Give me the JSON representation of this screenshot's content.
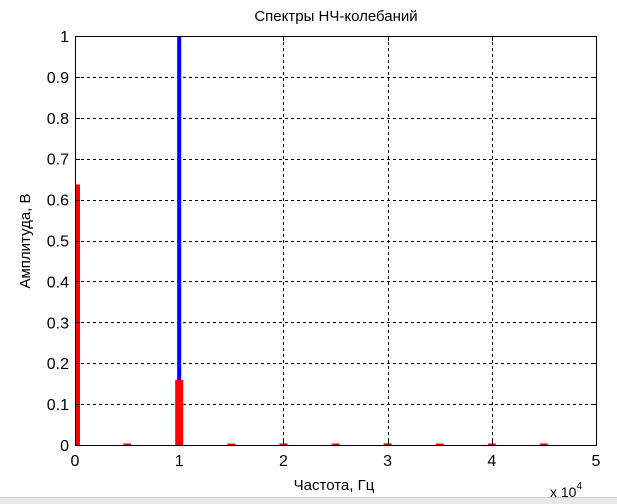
{
  "chart_data": {
    "type": "bar",
    "title": "Спектры НЧ-колебаний",
    "xlabel": "Частота, Гц",
    "ylabel": "Амплитуда, В",
    "x_multiplier_label": "x 10",
    "x_multiplier_exponent": "4",
    "xlim": [
      0,
      50000
    ],
    "ylim": [
      0,
      1
    ],
    "xticks": [
      0,
      10000,
      20000,
      30000,
      40000,
      50000
    ],
    "xtick_labels": [
      "0",
      "1",
      "2",
      "3",
      "4",
      "5"
    ],
    "yticks": [
      0,
      0.1,
      0.2,
      0.3,
      0.4,
      0.5,
      0.6,
      0.7,
      0.8,
      0.9,
      1
    ],
    "ytick_labels": [
      "0",
      "0.1",
      "0.2",
      "0.3",
      "0.4",
      "0.5",
      "0.6",
      "0.7",
      "0.8",
      "0.9",
      "1"
    ],
    "grid": true,
    "series": [
      {
        "color": "#0000ff",
        "x": [
          10000
        ],
        "values": [
          1.0
        ]
      },
      {
        "color": "#ff0000",
        "x": [
          0,
          5000,
          10000,
          15000,
          20000,
          25000,
          30000,
          35000,
          40000,
          45000
        ],
        "values": [
          0.637,
          0.002,
          0.159,
          0.002,
          0.002,
          0.002,
          0.004,
          0.002,
          0.003,
          0.002
        ]
      }
    ]
  }
}
